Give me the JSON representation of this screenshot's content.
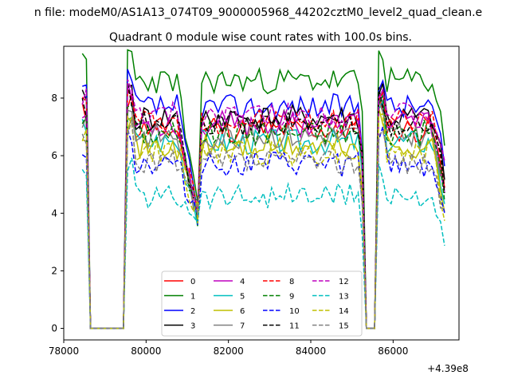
{
  "figure": {
    "suptitle": "n file: modeM0/AS1A13_074T09_9000005968_44202cztM0_level2_quad_clean.e",
    "title": "Quadrant 0 module wise count rates with 100.0s bins."
  },
  "chart_data": {
    "type": "line",
    "title": "Quadrant 0 module wise count rates with 100.0s bins.",
    "xlabel": "",
    "ylabel": "",
    "x_offset_label": "+4.39e8",
    "xlim": [
      78000,
      87600
    ],
    "ylim": [
      -0.4,
      9.8
    ],
    "xticks": [
      78000,
      80000,
      82000,
      84000,
      86000
    ],
    "yticks": [
      0,
      2,
      4,
      6,
      8
    ],
    "grid": false,
    "legend": {
      "placement": "lower-center",
      "columns": 4
    },
    "segments": [
      {
        "start": 78450,
        "end": 81250,
        "step": 100,
        "gap_zero_from": 78650,
        "gap_zero_to": 79450
      },
      {
        "start": 81250,
        "end": 87250,
        "step": 100,
        "gap_zero_from": 85350,
        "gap_zero_to": 85550
      }
    ],
    "series": [
      {
        "name": "0",
        "color": "#ff0000",
        "dash": "solid",
        "level": 6.9,
        "seed": 11
      },
      {
        "name": "1",
        "color": "#008000",
        "dash": "solid",
        "level": 8.6,
        "seed": 23
      },
      {
        "name": "2",
        "color": "#0000ff",
        "dash": "solid",
        "level": 7.7,
        "seed": 37
      },
      {
        "name": "3",
        "color": "#000000",
        "dash": "solid",
        "level": 7.3,
        "seed": 41
      },
      {
        "name": "4",
        "color": "#bf00bf",
        "dash": "solid",
        "level": 7.1,
        "seed": 53
      },
      {
        "name": "5",
        "color": "#00bfbf",
        "dash": "solid",
        "level": 6.5,
        "seed": 67
      },
      {
        "name": "6",
        "color": "#bfbf00",
        "dash": "solid",
        "level": 6.3,
        "seed": 71
      },
      {
        "name": "7",
        "color": "#808080",
        "dash": "solid",
        "level": 6.7,
        "seed": 83
      },
      {
        "name": "8",
        "color": "#ff0000",
        "dash": "dashed",
        "level": 7.2,
        "seed": 97
      },
      {
        "name": "9",
        "color": "#008000",
        "dash": "dashed",
        "level": 6.8,
        "seed": 101
      },
      {
        "name": "10",
        "color": "#0000ff",
        "dash": "dashed",
        "level": 5.7,
        "seed": 113
      },
      {
        "name": "11",
        "color": "#000000",
        "dash": "dashed",
        "level": 7.1,
        "seed": 127
      },
      {
        "name": "12",
        "color": "#bf00bf",
        "dash": "dashed",
        "level": 7.4,
        "seed": 131
      },
      {
        "name": "13",
        "color": "#00bfbf",
        "dash": "dashed",
        "level": 4.6,
        "seed": 139
      },
      {
        "name": "14",
        "color": "#bfbf00",
        "dash": "dashed",
        "level": 6.1,
        "seed": 149
      },
      {
        "name": "15",
        "color": "#808080",
        "dash": "dashed",
        "level": 5.8,
        "seed": 157
      }
    ]
  }
}
